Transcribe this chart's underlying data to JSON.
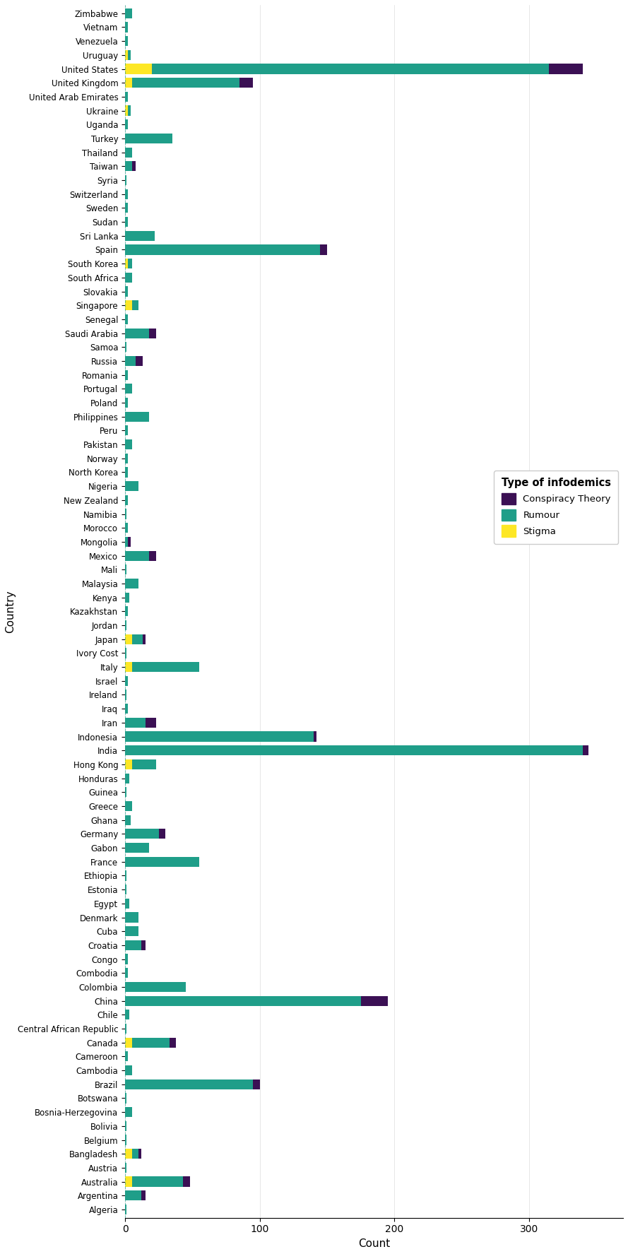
{
  "countries_bottom_to_top": [
    "Algeria",
    "Argentina",
    "Australia",
    "Austria",
    "Bangladesh",
    "Belgium",
    "Bolivia",
    "Bosnia-Herzegovina",
    "Botswana",
    "Brazil",
    "Cambodia",
    "Cameroon",
    "Canada",
    "Central African Republic",
    "Chile",
    "China",
    "Colombia",
    "Combodia",
    "Congo",
    "Croatia",
    "Cuba",
    "Denmark",
    "Egypt",
    "Estonia",
    "Ethiopia",
    "France",
    "Gabon",
    "Germany",
    "Ghana",
    "Greece",
    "Guinea",
    "Honduras",
    "Hong Kong",
    "India",
    "Indonesia",
    "Iran",
    "Iraq",
    "Ireland",
    "Israel",
    "Italy",
    "Ivory Cost",
    "Japan",
    "Jordan",
    "Kazakhstan",
    "Kenya",
    "Malaysia",
    "Mali",
    "Mexico",
    "Mongolia",
    "Morocco",
    "Namibia",
    "New Zealand",
    "Nigeria",
    "North Korea",
    "Norway",
    "Pakistan",
    "Peru",
    "Philippines",
    "Poland",
    "Portugal",
    "Romania",
    "Russia",
    "Samoa",
    "Saudi Arabia",
    "Senegal",
    "Singapore",
    "Slovakia",
    "South Africa",
    "South Korea",
    "Spain",
    "Sri Lanka",
    "Sudan",
    "Sweden",
    "Switzerland",
    "Syria",
    "Taiwan",
    "Thailand",
    "Turkey",
    "Uganda",
    "Ukraine",
    "United Arab Emirates",
    "United Kingdom",
    "United States",
    "Uruguay",
    "Venezuela",
    "Vietnam",
    "Zimbabwe"
  ],
  "conspiracy": [
    0,
    3,
    5,
    0,
    2,
    0,
    0,
    0,
    0,
    5,
    0,
    0,
    5,
    0,
    0,
    20,
    0,
    0,
    0,
    3,
    0,
    0,
    0,
    0,
    0,
    0,
    0,
    5,
    0,
    0,
    0,
    0,
    0,
    4,
    2,
    8,
    0,
    0,
    0,
    0,
    0,
    2,
    0,
    0,
    0,
    0,
    0,
    5,
    2,
    0,
    0,
    0,
    0,
    0,
    0,
    0,
    0,
    0,
    0,
    0,
    0,
    5,
    0,
    5,
    0,
    0,
    0,
    0,
    0,
    5,
    0,
    0,
    0,
    0,
    0,
    3,
    0,
    0,
    0,
    0,
    0,
    10,
    25,
    0,
    0,
    0,
    0
  ],
  "rumour": [
    1,
    12,
    38,
    1,
    5,
    1,
    1,
    5,
    1,
    95,
    5,
    2,
    28,
    1,
    3,
    175,
    45,
    2,
    2,
    12,
    10,
    10,
    3,
    1,
    1,
    55,
    18,
    25,
    4,
    5,
    1,
    3,
    18,
    340,
    140,
    15,
    2,
    1,
    2,
    50,
    1,
    8,
    1,
    2,
    3,
    10,
    1,
    18,
    2,
    2,
    1,
    2,
    10,
    2,
    2,
    5,
    2,
    18,
    2,
    5,
    2,
    8,
    1,
    18,
    2,
    5,
    2,
    5,
    3,
    145,
    22,
    2,
    2,
    2,
    1,
    5,
    5,
    35,
    2,
    2,
    2,
    80,
    295,
    2,
    2,
    2,
    5
  ],
  "stigma": [
    0,
    0,
    5,
    0,
    5,
    0,
    0,
    0,
    0,
    0,
    0,
    0,
    5,
    0,
    0,
    0,
    0,
    0,
    0,
    0,
    0,
    0,
    0,
    0,
    0,
    0,
    0,
    0,
    0,
    0,
    0,
    0,
    5,
    0,
    0,
    0,
    0,
    0,
    0,
    5,
    0,
    5,
    0,
    0,
    0,
    0,
    0,
    0,
    0,
    0,
    0,
    0,
    0,
    0,
    0,
    0,
    0,
    0,
    0,
    0,
    0,
    0,
    0,
    0,
    0,
    5,
    0,
    0,
    2,
    0,
    0,
    0,
    0,
    0,
    0,
    0,
    0,
    0,
    0,
    2,
    0,
    5,
    20,
    2,
    0,
    0,
    0
  ],
  "colors": {
    "conspiracy": "#3b1054",
    "rumour": "#1f9e89",
    "stigma": "#fde725"
  },
  "xlabel": "Count",
  "ylabel": "Country",
  "legend_title": "Type of infodemics",
  "xlim": [
    0,
    370
  ],
  "xticks": [
    0,
    100,
    200,
    300
  ]
}
